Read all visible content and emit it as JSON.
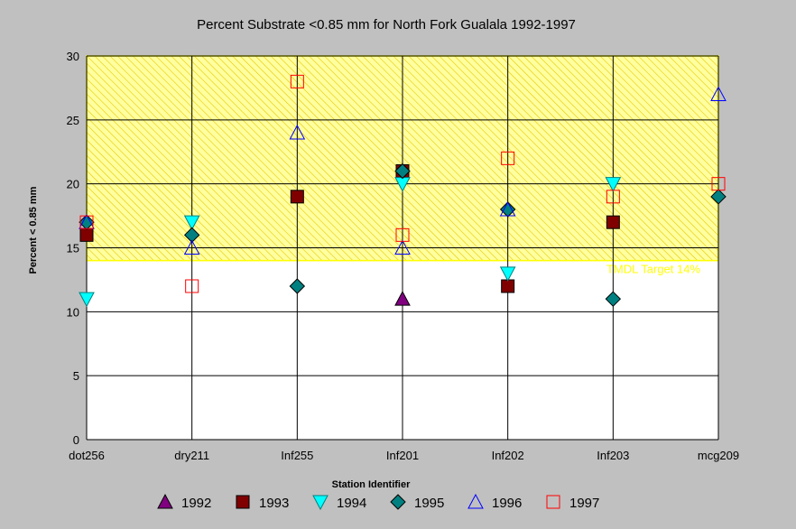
{
  "chart_data": {
    "type": "scatter",
    "title": "Percent Substrate <0.85 mm for North Fork Gualala 1992-1997",
    "xlabel": "Station Identifier",
    "ylabel": "Percent < 0.85 mm",
    "categories": [
      "dot256",
      "dry211",
      "Inf255",
      "Inf201",
      "Inf202",
      "Inf203",
      "mcg209"
    ],
    "ylim": [
      0,
      30
    ],
    "yticks": [
      0,
      5,
      10,
      15,
      20,
      25,
      30
    ],
    "grid": true,
    "legend_position": "bottom",
    "target_band": {
      "label": "TMDL Target 14%",
      "from": 14,
      "to": 30,
      "color": "#ffff00"
    },
    "series": [
      {
        "name": "1992",
        "marker": "triangle-up",
        "fill": "#800080",
        "stroke": "#000000",
        "values": [
          null,
          null,
          null,
          11,
          null,
          null,
          null
        ]
      },
      {
        "name": "1993",
        "marker": "square",
        "fill": "#800000",
        "stroke": "#000000",
        "values": [
          16,
          null,
          19,
          21,
          12,
          17,
          null
        ]
      },
      {
        "name": "1994",
        "marker": "triangle-down",
        "fill": "#00ffff",
        "stroke": "#008080",
        "values": [
          11,
          17,
          null,
          20,
          13,
          20,
          null
        ]
      },
      {
        "name": "1995",
        "marker": "diamond",
        "fill": "#008080",
        "stroke": "#000000",
        "values": [
          17,
          16,
          12,
          21,
          18,
          11,
          19
        ]
      },
      {
        "name": "1996",
        "marker": "triangle-up",
        "fill": "none",
        "stroke": "#0000ff",
        "values": [
          17,
          15,
          24,
          15,
          18,
          null,
          27
        ]
      },
      {
        "name": "1997",
        "marker": "square",
        "fill": "none",
        "stroke": "#ff0000",
        "values": [
          17,
          12,
          28,
          16,
          22,
          19,
          20
        ]
      }
    ]
  }
}
